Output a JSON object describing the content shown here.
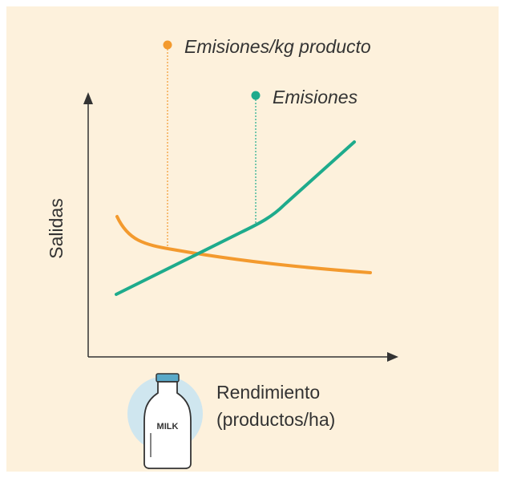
{
  "labels": {
    "emissions_per_kg": "Emisiones/kg producto",
    "emissions": "Emisiones",
    "y_axis": "Salidas",
    "x_axis_line1": "Rendimiento",
    "x_axis_line2": "(productos/ha)",
    "bottle": "MILK"
  }
}
